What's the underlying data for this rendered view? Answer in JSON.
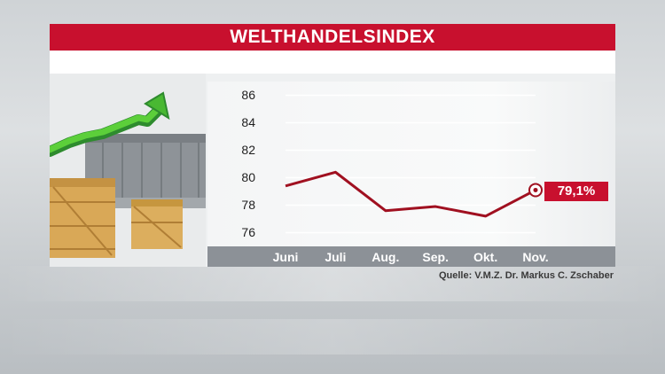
{
  "header": {
    "title": "WELTHANDELSINDEX"
  },
  "source": {
    "text": "Quelle: V.M.Z. Dr. Markus C. Zschaber"
  },
  "callout": {
    "label": "79,1%"
  },
  "illustration": {
    "icons": [
      "green-arrow-icon",
      "wooden-crate-icon",
      "container-stack-icon"
    ]
  },
  "colors": {
    "accent": "#c8102e",
    "line": "#a01020",
    "axis_bar": "#8c9197"
  },
  "chart_data": {
    "type": "line",
    "categories": [
      "Juni",
      "Juli",
      "Aug.",
      "Sep.",
      "Okt.",
      "Nov."
    ],
    "series": [
      {
        "values": [
          79.4,
          80.4,
          77.6,
          77.9,
          77.2,
          79.1
        ]
      }
    ],
    "yticks": [
      "86",
      "84",
      "82",
      "80",
      "78",
      "76"
    ],
    "ylim": [
      75,
      87
    ],
    "title": "WELTHANDELSINDEX",
    "xlabel": "",
    "ylabel": "",
    "grid": true,
    "highlight": {
      "index": 5,
      "label": "79,1%"
    }
  }
}
